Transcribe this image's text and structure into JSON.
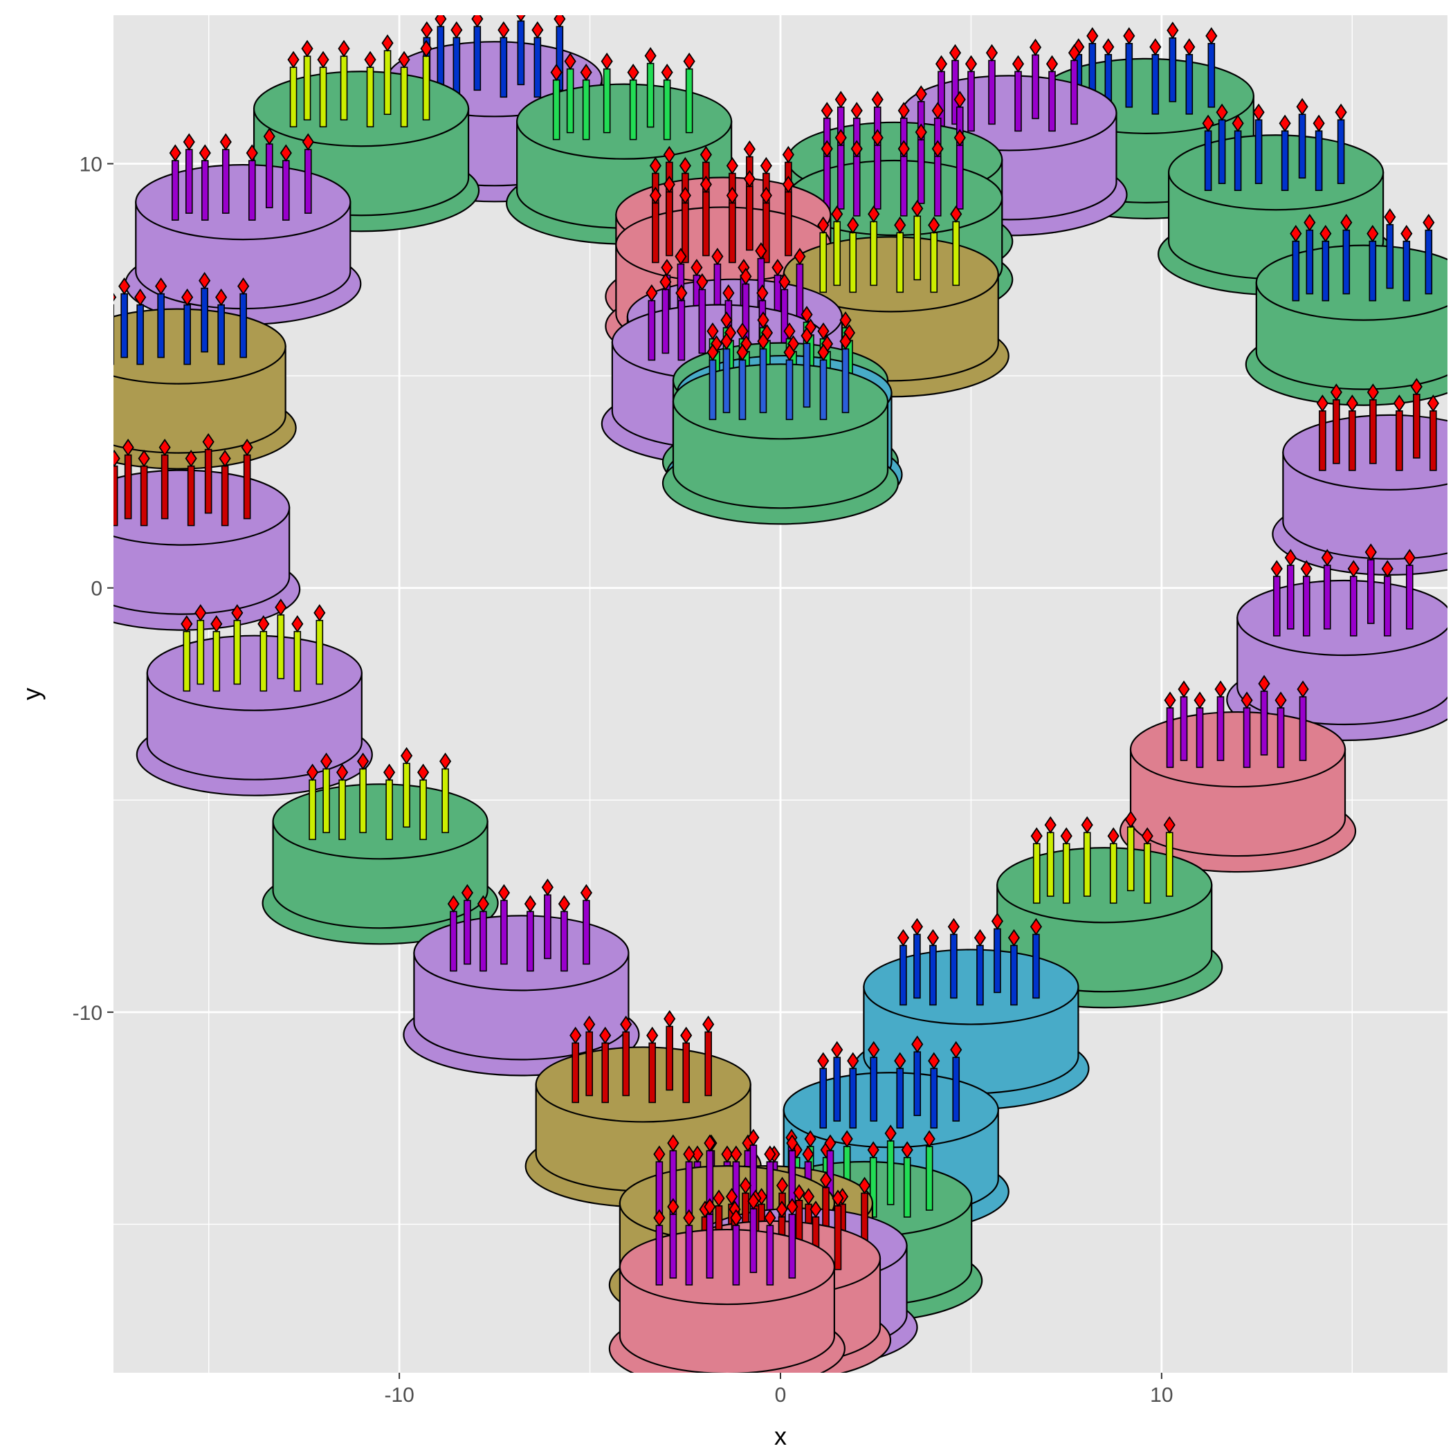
{
  "chart_data": {
    "type": "scatter",
    "title": "",
    "xlabel": "x",
    "ylabel": "y",
    "xlim": [
      -17.5,
      17.5
    ],
    "ylim": [
      -18.5,
      13.5
    ],
    "x_ticks": [
      -10,
      0,
      10
    ],
    "x_tick_labels": [
      "-10",
      "0",
      "10"
    ],
    "y_ticks": [
      -10,
      0,
      10
    ],
    "y_tick_labels": [
      "-10",
      "0",
      "10"
    ],
    "grid": true,
    "legend": "none",
    "marker": "birthday-cake-icon",
    "colors": {
      "panel": "#e5e5e5",
      "grid": "#ffffff",
      "flame": "#ff0000",
      "plate_border": "#000000"
    },
    "points": [
      {
        "x": 0.0,
        "y": 2.6,
        "color": "#56b27a",
        "candle": "#2b5fd9"
      },
      {
        "x": 0.1,
        "y": 2.8,
        "color": "#48abc8",
        "candle": "#22dd55"
      },
      {
        "x": -1.6,
        "y": 4.0,
        "color": "#b388d8",
        "candle": "#9900cc"
      },
      {
        "x": -1.5,
        "y": 6.3,
        "color": "#de7f8f",
        "candle": "#cc0000"
      },
      {
        "x": 2.9,
        "y": 5.6,
        "color": "#ad9b50",
        "candle": "#ccee00"
      },
      {
        "x": 3.0,
        "y": 7.4,
        "color": "#56b27a",
        "candle": "#9900cc"
      },
      {
        "x": 6.0,
        "y": 9.4,
        "color": "#b388d8",
        "candle": "#9900cc"
      },
      {
        "x": 9.6,
        "y": 9.8,
        "color": "#56b27a",
        "candle": "#0033cc"
      },
      {
        "x": 13.0,
        "y": 8.0,
        "color": "#56b27a",
        "candle": "#0033cc"
      },
      {
        "x": 15.3,
        "y": 5.4,
        "color": "#56b27a",
        "candle": "#0033cc"
      },
      {
        "x": 16.0,
        "y": 1.4,
        "color": "#b388d8",
        "candle": "#cc0000"
      },
      {
        "x": 14.8,
        "y": -2.5,
        "color": "#b388d8",
        "candle": "#9900cc"
      },
      {
        "x": 12.0,
        "y": -5.6,
        "color": "#de7f8f",
        "candle": "#9900cc"
      },
      {
        "x": 8.5,
        "y": -8.8,
        "color": "#56b27a",
        "candle": "#ccee00"
      },
      {
        "x": 5.0,
        "y": -11.2,
        "color": "#48abc8",
        "candle": "#0033cc"
      },
      {
        "x": 2.9,
        "y": -14.1,
        "color": "#48abc8",
        "candle": "#0033cc"
      },
      {
        "x": 2.2,
        "y": -16.2,
        "color": "#56b27a",
        "candle": "#22dd55"
      },
      {
        "x": 0.5,
        "y": -17.3,
        "color": "#b388d8",
        "candle": "#cc0000"
      },
      {
        "x": -0.4,
        "y": -16.3,
        "color": "#ad9b50",
        "candle": "#9900cc"
      },
      {
        "x": -3.6,
        "y": -13.5,
        "color": "#ad9b50",
        "candle": "#cc0000"
      },
      {
        "x": -6.8,
        "y": -10.4,
        "color": "#b388d8",
        "candle": "#9900cc"
      },
      {
        "x": -10.5,
        "y": -7.3,
        "color": "#56b27a",
        "candle": "#ccee00"
      },
      {
        "x": -13.8,
        "y": -3.8,
        "color": "#b388d8",
        "candle": "#ccee00"
      },
      {
        "x": -15.7,
        "y": 0.1,
        "color": "#b388d8",
        "candle": "#cc0000"
      },
      {
        "x": -15.8,
        "y": 3.9,
        "color": "#ad9b50",
        "candle": "#0033cc"
      },
      {
        "x": -14.1,
        "y": 7.3,
        "color": "#b388d8",
        "candle": "#9900cc"
      },
      {
        "x": -11.0,
        "y": 9.5,
        "color": "#56b27a",
        "candle": "#ccee00"
      },
      {
        "x": -7.5,
        "y": 10.2,
        "color": "#b388d8",
        "candle": "#0033cc"
      },
      {
        "x": -4.1,
        "y": 9.2,
        "color": "#56b27a",
        "candle": "#22dd55"
      },
      {
        "x": -1.5,
        "y": 7.0,
        "color": "#de7f8f",
        "candle": "#cc0000"
      },
      {
        "x": 3.0,
        "y": 8.3,
        "color": "#56b27a",
        "candle": "#9900cc"
      },
      {
        "x": -1.2,
        "y": 4.6,
        "color": "#b388d8",
        "candle": "#9900cc"
      },
      {
        "x": 0.0,
        "y": 3.1,
        "color": "#56b27a",
        "candle": "#22dd55"
      },
      {
        "x": -1.4,
        "y": -17.8,
        "color": "#de7f8f",
        "candle": "#9900cc"
      },
      {
        "x": -1.4,
        "y": -16.3,
        "color": "#ad9b50",
        "candle": "#9900cc"
      },
      {
        "x": -0.2,
        "y": -17.6,
        "color": "#de7f8f",
        "candle": "#cc0000"
      }
    ]
  }
}
